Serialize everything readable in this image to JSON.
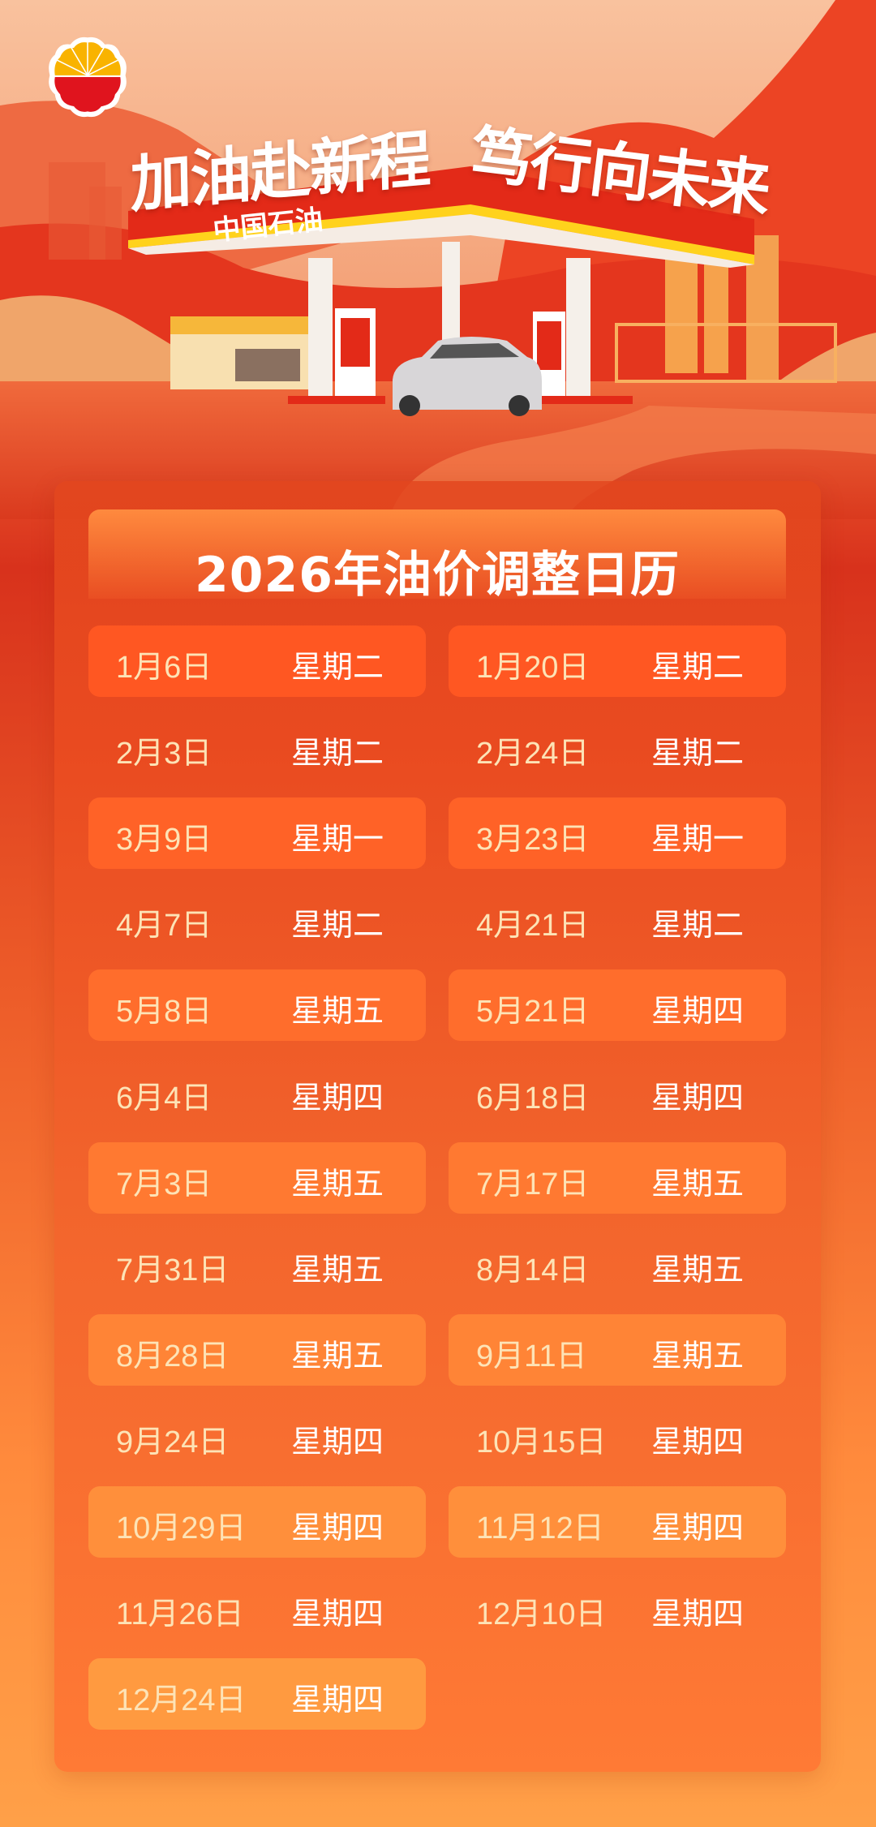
{
  "header": {
    "logo": "PetroChina logo",
    "slogan_part1": "加油赴新程",
    "slogan_part2": "笃行向未来",
    "station_brand": "中国石油"
  },
  "calendar": {
    "title": "2026年油价调整日历",
    "colors": {
      "date_text": "#fde3b6",
      "weekday_text": "#ffffff",
      "highlight_top": "#ff5722",
      "highlight_bottom": "#ff9a40"
    },
    "dates": [
      {
        "date": "1月6日",
        "weekday": "星期二"
      },
      {
        "date": "1月20日",
        "weekday": "星期二"
      },
      {
        "date": "2月3日",
        "weekday": "星期二"
      },
      {
        "date": "2月24日",
        "weekday": "星期二"
      },
      {
        "date": "3月9日",
        "weekday": "星期一"
      },
      {
        "date": "3月23日",
        "weekday": "星期一"
      },
      {
        "date": "4月7日",
        "weekday": "星期二"
      },
      {
        "date": "4月21日",
        "weekday": "星期二"
      },
      {
        "date": "5月8日",
        "weekday": "星期五"
      },
      {
        "date": "5月21日",
        "weekday": "星期四"
      },
      {
        "date": "6月4日",
        "weekday": "星期四"
      },
      {
        "date": "6月18日",
        "weekday": "星期四"
      },
      {
        "date": "7月3日",
        "weekday": "星期五"
      },
      {
        "date": "7月17日",
        "weekday": "星期五"
      },
      {
        "date": "7月31日",
        "weekday": "星期五"
      },
      {
        "date": "8月14日",
        "weekday": "星期五"
      },
      {
        "date": "8月28日",
        "weekday": "星期五"
      },
      {
        "date": "9月11日",
        "weekday": "星期五"
      },
      {
        "date": "9月24日",
        "weekday": "星期四"
      },
      {
        "date": "10月15日",
        "weekday": "星期四"
      },
      {
        "date": "10月29日",
        "weekday": "星期四"
      },
      {
        "date": "11月12日",
        "weekday": "星期四"
      },
      {
        "date": "11月26日",
        "weekday": "星期四"
      },
      {
        "date": "12月10日",
        "weekday": "星期四"
      },
      {
        "date": "12月24日",
        "weekday": "星期四"
      }
    ]
  }
}
